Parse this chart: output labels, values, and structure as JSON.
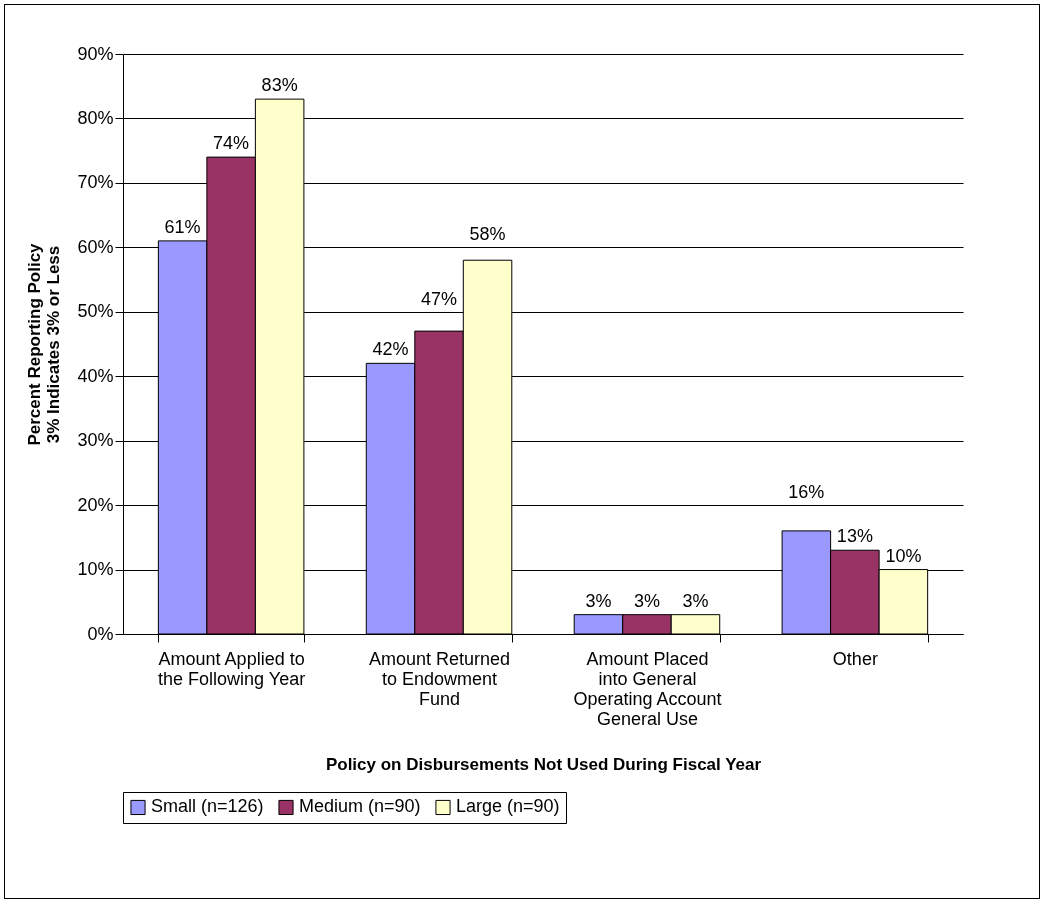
{
  "chart_data": {
    "type": "bar",
    "xlabel": "Policy on Disbursements Not Used During Fiscal Year",
    "ylabel": "Percent Reporting Policy\n3% Indicates 3% or Less",
    "categories": [
      "Amount Applied to\nthe Following Year",
      "Amount Returned\nto Endowment\nFund",
      "Amount Placed\ninto General\nOperating Account\nGeneral Use",
      "Other"
    ],
    "series": [
      {
        "name": "Small (n=126)",
        "color": "#9999ff",
        "values": [
          61,
          42,
          3,
          16
        ],
        "value_labels": [
          "61%",
          "42%",
          "3%",
          "16%"
        ]
      },
      {
        "name": "Medium (n=90)",
        "color": "#993366",
        "values": [
          74,
          47,
          3,
          13
        ],
        "value_labels": [
          "74%",
          "47%",
          "3%",
          "13%"
        ]
      },
      {
        "name": "Large (n=90)",
        "color": "#ffffcc",
        "values": [
          83,
          58,
          3,
          10
        ],
        "value_labels": [
          "83%",
          "58%",
          "3%",
          "10%"
        ]
      }
    ],
    "ylim": [
      0,
      90
    ],
    "yticks": [
      {
        "value": 0,
        "label": "0%"
      },
      {
        "value": 10,
        "label": "10%"
      },
      {
        "value": 20,
        "label": "20%"
      },
      {
        "value": 30,
        "label": "30%"
      },
      {
        "value": 40,
        "label": "40%"
      },
      {
        "value": 50,
        "label": "50%"
      },
      {
        "value": 60,
        "label": "60%"
      },
      {
        "value": 70,
        "label": "70%"
      },
      {
        "value": 80,
        "label": "80%"
      },
      {
        "value": 90,
        "label": "90%"
      }
    ],
    "grid": "y",
    "legend": "bottom"
  }
}
